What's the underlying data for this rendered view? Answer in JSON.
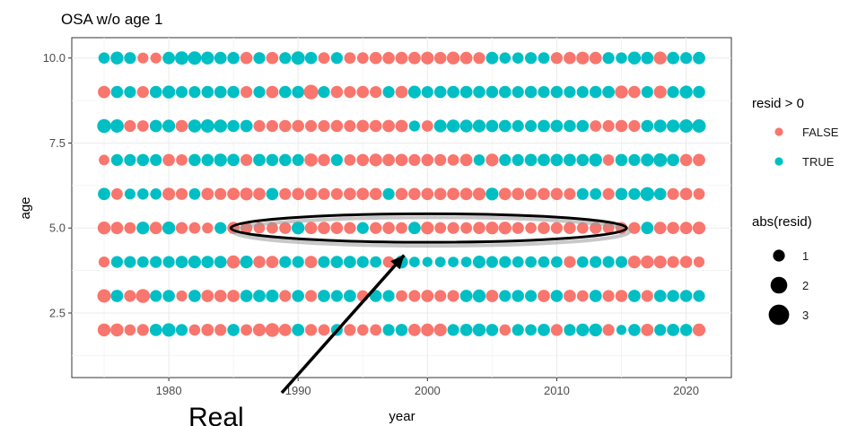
{
  "chart_data": {
    "type": "scatter",
    "title": "OSA w/o age 1",
    "xlabel": "year",
    "ylabel": "age",
    "xlim": [
      1972.5,
      2023.5
    ],
    "ylim": [
      0.6,
      10.6
    ],
    "xticks": [
      1980,
      1990,
      2000,
      2010,
      2020
    ],
    "yticks": [
      2.5,
      5.0,
      7.5,
      10.0
    ],
    "xtick_labels": [
      "1980",
      "1990",
      "2000",
      "2010",
      "2020"
    ],
    "ytick_labels": [
      "2.5",
      "5.0",
      "7.5",
      "10.0"
    ],
    "grid": true,
    "legend_position": "right",
    "color_legend": {
      "title": "resid > 0",
      "entries": [
        {
          "label": "FALSE",
          "color": "#F8766D"
        },
        {
          "label": "TRUE",
          "color": "#00BFC4"
        }
      ]
    },
    "size_legend": {
      "title": "abs(resid)",
      "entries": [
        {
          "label": "1",
          "value": 1
        },
        {
          "label": "2",
          "value": 2
        },
        {
          "label": "3",
          "value": 3
        }
      ]
    },
    "years": [
      1975,
      1976,
      1977,
      1978,
      1979,
      1980,
      1981,
      1982,
      1983,
      1984,
      1985,
      1986,
      1987,
      1988,
      1989,
      1990,
      1991,
      1992,
      1993,
      1994,
      1995,
      1996,
      1997,
      1998,
      1999,
      2000,
      2001,
      2002,
      2003,
      2004,
      2005,
      2006,
      2007,
      2008,
      2009,
      2010,
      2011,
      2012,
      2013,
      2014,
      2015,
      2016,
      2017,
      2018,
      2019,
      2020,
      2021
    ],
    "ages": [
      2,
      3,
      4,
      5,
      6,
      7,
      8,
      9,
      10
    ],
    "series": [
      {
        "age": 2,
        "resid": [
          -1.4,
          -1.5,
          -0.8,
          -1.0,
          1.2,
          1.6,
          1.0,
          -0.8,
          -1.2,
          -1.0,
          1.1,
          -0.9,
          -1.3,
          -1.8,
          -1.2,
          1.2,
          -1.0,
          -0.9,
          1.0,
          -1.0,
          -0.8,
          -0.9,
          1.0,
          1.1,
          -1.2,
          -1.3,
          -1.3,
          1.0,
          1.2,
          1.4,
          1.1,
          -0.8,
          1.0,
          0.9,
          1.2,
          -1.0,
          1.0,
          1.3,
          1.4,
          -1.0,
          0.5,
          1.1,
          -1.2,
          1.0,
          1.2,
          1.1,
          -1.3
        ]
      },
      {
        "age": 3,
        "resid": [
          -1.6,
          1.2,
          -1.0,
          -1.9,
          1.0,
          1.1,
          -0.7,
          1.2,
          -1.2,
          -1.2,
          -1.2,
          1.2,
          1.2,
          1.3,
          -1.0,
          1.1,
          -1.0,
          1.2,
          1.0,
          1.2,
          -0.9,
          1.1,
          1.0,
          -0.9,
          -1.0,
          -1.2,
          -1.0,
          -1.0,
          1.2,
          1.4,
          -1.2,
          1.0,
          1.1,
          1.0,
          -1.2,
          1.1,
          -1.2,
          -0.9,
          1.2,
          -1.0,
          -1.1,
          1.2,
          -1.0,
          1.2,
          1.1,
          1.1,
          1.0
        ]
      },
      {
        "age": 4,
        "resid": [
          -0.7,
          1.0,
          1.0,
          0.9,
          1.0,
          1.0,
          1.2,
          1.3,
          1.2,
          1.2,
          -1.5,
          1.3,
          -1.1,
          -1.2,
          1.0,
          1.0,
          -1.2,
          1.0,
          1.2,
          1.2,
          1.0,
          0.9,
          -0.9,
          1.4,
          0.6,
          0.5,
          0.6,
          0.6,
          0.6,
          1.3,
          1.0,
          1.0,
          0.9,
          0.9,
          0.9,
          0.9,
          -1.0,
          0.9,
          1.0,
          1.0,
          1.0,
          -1.3,
          -1.4,
          -1.3,
          -1.0,
          -1.1,
          -0.7
        ]
      },
      {
        "age": 5,
        "resid": [
          -1.4,
          -1.2,
          -0.9,
          1.3,
          -1.2,
          1.4,
          -1.0,
          -0.9,
          -0.7,
          1.0,
          -1.1,
          -1.0,
          -0.8,
          -0.9,
          -1.0,
          1.4,
          -1.2,
          -1.2,
          -1.1,
          -1.0,
          1.0,
          -1.0,
          -1.1,
          -0.9,
          1.2,
          -1.3,
          -0.9,
          -1.0,
          -0.9,
          -1.1,
          -1.3,
          -1.3,
          -1.0,
          -0.8,
          -1.1,
          -1.0,
          -1.1,
          -0.9,
          -1.0,
          -0.9,
          -1.0,
          -1.0,
          1.2,
          -1.2,
          -1.1,
          -1.2,
          -1.3
        ]
      },
      {
        "age": 6,
        "resid": [
          1.2,
          -0.9,
          0.7,
          0.8,
          0.8,
          -1.3,
          -1.0,
          0.9,
          -1.2,
          -1.0,
          -1.2,
          -1.3,
          -1.2,
          1.1,
          -1.0,
          -1.1,
          -1.1,
          -1.0,
          -1.0,
          -1.2,
          -1.2,
          -1.1,
          1.0,
          -1.1,
          -1.1,
          -1.1,
          -1.1,
          -1.2,
          -1.2,
          -1.3,
          1.3,
          -1.2,
          -1.2,
          -1.0,
          -1.1,
          -1.1,
          -1.0,
          1.0,
          0.9,
          -1.0,
          1.1,
          1.0,
          1.8,
          1.1,
          -1.0,
          -1.2,
          -0.9
        ]
      },
      {
        "age": 7,
        "resid": [
          -0.6,
          1.0,
          1.0,
          1.1,
          1.0,
          -1.1,
          -0.9,
          1.1,
          1.1,
          1.4,
          1.2,
          -1.0,
          1.2,
          1.1,
          1.1,
          1.0,
          -1.5,
          -1.1,
          1.0,
          -0.9,
          -1.1,
          -1.3,
          -1.2,
          -1.2,
          -1.0,
          -1.1,
          -1.0,
          -0.9,
          -1.2,
          0.8,
          -1.3,
          1.0,
          1.0,
          1.2,
          1.2,
          1.2,
          1.2,
          1.1,
          1.4,
          -0.8,
          1.1,
          1.0,
          1.3,
          1.6,
          1.2,
          -1.1,
          -1.2
        ]
      },
      {
        "age": 8,
        "resid": [
          1.8,
          1.6,
          -1.0,
          -0.9,
          1.2,
          1.3,
          -1.1,
          1.5,
          1.6,
          1.5,
          1.1,
          1.2,
          -1.0,
          -1.0,
          -1.1,
          -1.1,
          -1.0,
          -1.0,
          -1.1,
          -1.0,
          -1.2,
          -1.1,
          -1.2,
          -1.2,
          0.7,
          -0.9,
          1.3,
          1.4,
          1.3,
          1.3,
          1.2,
          1.2,
          1.0,
          1.0,
          1.2,
          1.2,
          1.1,
          1.1,
          -0.9,
          -1.0,
          -1.1,
          -1.0,
          1.1,
          1.3,
          1.3,
          1.6,
          1.6
        ]
      },
      {
        "age": 9,
        "resid": [
          -1.2,
          1.1,
          1.0,
          -1.0,
          1.1,
          1.4,
          1.0,
          1.0,
          1.1,
          1.2,
          1.1,
          -1.0,
          1.0,
          -1.2,
          1.1,
          1.2,
          -2.1,
          1.0,
          -1.1,
          -1.0,
          -1.1,
          -1.0,
          1.0,
          -1.2,
          1.3,
          1.0,
          1.1,
          1.2,
          1.2,
          1.1,
          1.1,
          1.1,
          1.0,
          1.1,
          1.0,
          1.1,
          1.0,
          1.0,
          1.1,
          1.2,
          -1.4,
          -1.1,
          1.0,
          -1.3,
          1.0,
          1.4,
          1.1
        ]
      },
      {
        "age": 10,
        "resid": [
          0.8,
          1.4,
          1.0,
          -0.7,
          -0.7,
          1.2,
          1.6,
          1.6,
          1.4,
          1.2,
          1.1,
          -1.1,
          1.0,
          -1.1,
          1.0,
          1.6,
          1.1,
          -0.9,
          1.0,
          -0.9,
          -0.9,
          -1.1,
          -1.1,
          -1.2,
          -1.2,
          -1.3,
          -1.1,
          -1.4,
          -1.2,
          -1.0,
          1.2,
          0.8,
          0.8,
          1.0,
          0.9,
          -1.0,
          -1.1,
          -1.3,
          -1.2,
          1.0,
          0.8,
          1.4,
          1.2,
          -1.4,
          1.2,
          1.0,
          1.2
        ]
      }
    ]
  },
  "annotation": {
    "text": "Real",
    "ellipse_center": [
      2000.1,
      5.0
    ],
    "ellipse_half_width_years": 15.3,
    "ellipse_half_height_age": 0.42,
    "arrow_tip": [
      1998.2,
      4.2
    ]
  }
}
